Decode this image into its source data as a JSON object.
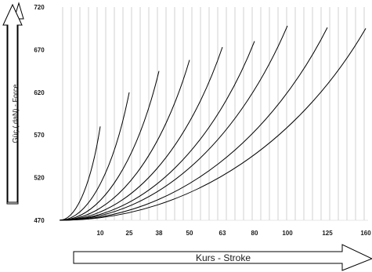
{
  "chart_data": {
    "type": "line",
    "ylabel": "Güç ( daN) - Force",
    "xlabel": "Kurs - Stroke",
    "ylim": [
      470,
      720
    ],
    "yticks": [
      "720",
      "670",
      "620",
      "570",
      "520",
      "470"
    ],
    "categories": [
      "10",
      "25",
      "38",
      "50",
      "63",
      "80",
      "100",
      "125",
      "160"
    ],
    "grid": "vertical",
    "series": [
      {
        "stroke": "10",
        "end_force": 580
      },
      {
        "stroke": "25",
        "end_force": 620
      },
      {
        "stroke": "38",
        "end_force": 645
      },
      {
        "stroke": "50",
        "end_force": 658
      },
      {
        "stroke": "63",
        "end_force": 673
      },
      {
        "stroke": "80",
        "end_force": 680
      },
      {
        "stroke": "100",
        "end_force": 698
      },
      {
        "stroke": "125",
        "end_force": 696
      },
      {
        "stroke": "160",
        "end_force": 695
      }
    ],
    "start_force": 470
  },
  "colors": {
    "grid": "#b3b3b3",
    "curve": "#000000",
    "text": "#1a1a1a"
  }
}
